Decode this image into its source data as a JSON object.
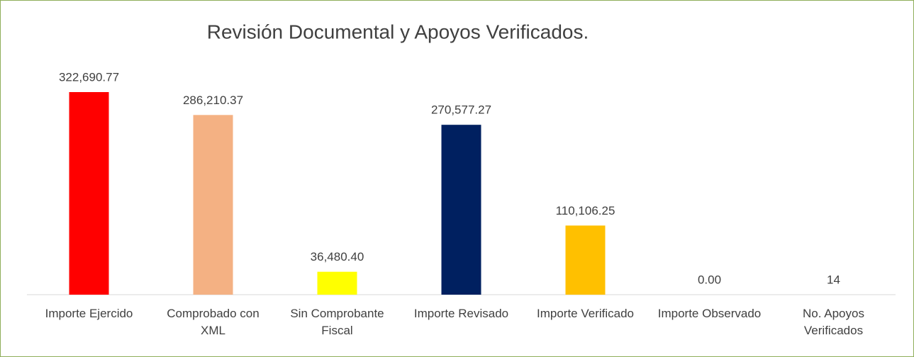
{
  "chart_data": {
    "type": "bar",
    "title": "Revisión Documental y Apoyos Verificados.",
    "categories": [
      "Importe Ejercido",
      "Comprobado con XML",
      "Sin Comprobante Fiscal",
      "Importe Revisado",
      "Importe Verificado",
      "Importe Observado",
      "No. Apoyos Verificados"
    ],
    "values": [
      322690.77,
      286210.37,
      36480.4,
      270577.27,
      110106.25,
      0,
      14
    ],
    "value_labels": [
      "322,690.77",
      "286,210.37",
      "36,480.40",
      "270,577.27",
      "110,106.25",
      "0.00",
      "14"
    ],
    "colors": [
      "#ff0000",
      "#f4b183",
      "#ffff00",
      "#002060",
      "#ffc000",
      "#ffc000",
      "#ffc000"
    ]
  }
}
